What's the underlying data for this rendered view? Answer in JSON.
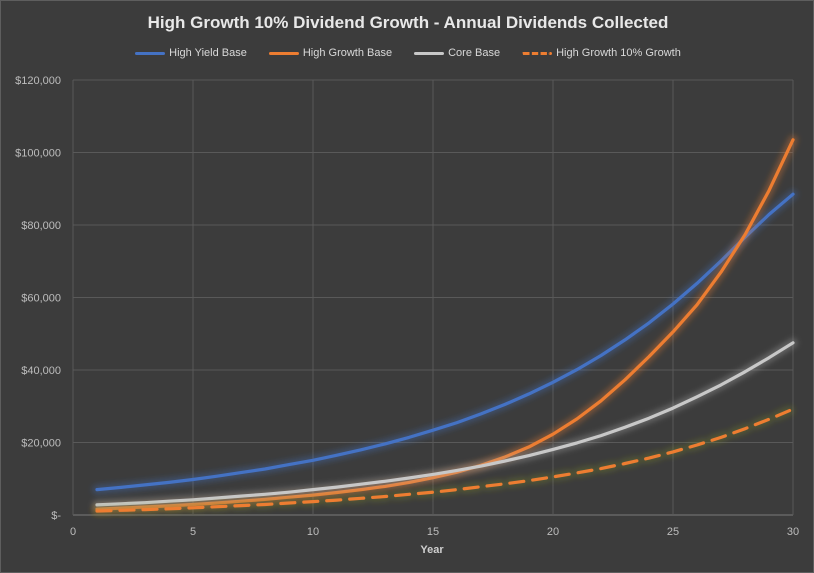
{
  "chart_data": {
    "type": "line",
    "title": "High Growth 10% Dividend Growth - Annual Dividends Collected",
    "xlabel": "Year",
    "ylabel": "",
    "xlim": [
      0,
      30
    ],
    "ylim": [
      0,
      120000
    ],
    "x_ticks": [
      0,
      5,
      10,
      15,
      20,
      25,
      30
    ],
    "y_ticks": [
      0,
      20000,
      40000,
      60000,
      80000,
      100000,
      120000
    ],
    "x_tick_labels": [
      "0",
      "5",
      "10",
      "15",
      "20",
      "25",
      "30"
    ],
    "y_tick_labels": [
      "$-",
      "$20,000",
      "$40,000",
      "$60,000",
      "$80,000",
      "$100,000",
      "$120,000"
    ],
    "grid": true,
    "legend_position": "top",
    "series": [
      {
        "name": "High Yield Base",
        "color": "#4472c4",
        "dashed": false,
        "x": [
          1,
          2,
          3,
          4,
          5,
          6,
          7,
          8,
          9,
          10,
          11,
          12,
          13,
          14,
          15,
          16,
          17,
          18,
          19,
          20,
          21,
          22,
          23,
          24,
          25,
          26,
          27,
          28,
          29,
          30
        ],
        "y": [
          7000,
          7600,
          8300,
          9000,
          9800,
          10700,
          11700,
          12700,
          13900,
          15100,
          16500,
          18000,
          19600,
          21400,
          23400,
          25500,
          27900,
          30500,
          33400,
          36600,
          40100,
          44000,
          48300,
          53000,
          58200,
          63900,
          70100,
          76600,
          82900,
          88500
        ]
      },
      {
        "name": "High Growth Base",
        "color": "#ed7d31",
        "dashed": false,
        "x": [
          1,
          2,
          3,
          4,
          5,
          6,
          7,
          8,
          9,
          10,
          11,
          12,
          13,
          14,
          15,
          16,
          17,
          18,
          19,
          20,
          21,
          22,
          23,
          24,
          25,
          26,
          27,
          28,
          29,
          30
        ],
        "y": [
          1600,
          1900,
          2200,
          2500,
          2900,
          3300,
          3800,
          4300,
          4900,
          5500,
          6200,
          7000,
          7900,
          9000,
          10300,
          11800,
          13700,
          16000,
          18800,
          22300,
          26500,
          31500,
          37300,
          43700,
          50500,
          58000,
          67000,
          77300,
          89500,
          103500
        ]
      },
      {
        "name": "Core Base",
        "color": "#a5a5a5",
        "dashed": false,
        "x": [
          1,
          2,
          3,
          4,
          5,
          6,
          7,
          8,
          9,
          10,
          11,
          12,
          13,
          14,
          15,
          16,
          17,
          18,
          19,
          20,
          21,
          22,
          23,
          24,
          25,
          26,
          27,
          28,
          29,
          30
        ],
        "y": [
          2800,
          3100,
          3400,
          3800,
          4200,
          4700,
          5200,
          5700,
          6300,
          7000,
          7700,
          8500,
          9300,
          10200,
          11200,
          12300,
          13500,
          14900,
          16400,
          18100,
          19900,
          21900,
          24200,
          26700,
          29500,
          32600,
          35900,
          39500,
          43400,
          47500
        ]
      },
      {
        "name": "High Growth 10% Growth",
        "color": "#ed7d31",
        "dashed": true,
        "x": [
          1,
          2,
          3,
          4,
          5,
          6,
          7,
          8,
          9,
          10,
          11,
          12,
          13,
          14,
          15,
          16,
          17,
          18,
          19,
          20,
          21,
          22,
          23,
          24,
          25,
          26,
          27,
          28,
          29,
          30
        ],
        "y": [
          1100,
          1300,
          1500,
          1700,
          2000,
          2300,
          2600,
          2900,
          3300,
          3700,
          4100,
          4600,
          5100,
          5700,
          6300,
          7000,
          7800,
          8600,
          9500,
          10500,
          11600,
          12800,
          14200,
          15700,
          17400,
          19300,
          21400,
          23800,
          26400,
          29200
        ]
      }
    ]
  }
}
